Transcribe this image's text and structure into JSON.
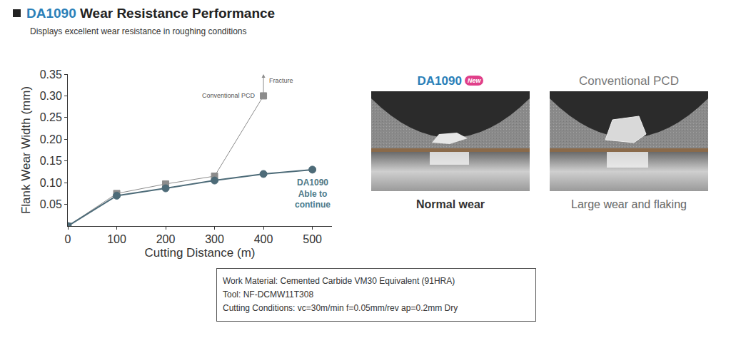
{
  "header": {
    "title_highlight": "DA1090",
    "title_rest": "Wear Resistance Performance",
    "subtitle": "Displays excellent wear resistance in roughing conditions"
  },
  "chart_data": {
    "type": "line",
    "xlabel": "Cutting Distance (m)",
    "ylabel": "Flank Wear Width (mm)",
    "xlim": [
      0,
      540
    ],
    "xticks": [
      0,
      100,
      200,
      300,
      400,
      500
    ],
    "ylim": [
      0,
      0.35
    ],
    "yticks": [
      0.05,
      {
        "value": 0.1,
        "label": "0.10"
      },
      0.15,
      {
        "value": 0.2,
        "label": "0.20"
      },
      0.25,
      {
        "value": 0.3,
        "label": "0.30"
      },
      0.35
    ],
    "grid": false,
    "series": [
      {
        "name": "Conventional PCD",
        "color": "#8c8c8c",
        "marker": "square",
        "line_style": "solid",
        "x": [
          0,
          100,
          200,
          300,
          400
        ],
        "values": [
          0,
          0.075,
          0.097,
          0.115,
          0.3
        ]
      },
      {
        "name": "DA1090",
        "color": "#4d6b78",
        "marker": "circle",
        "line_style": "solid",
        "x": [
          0,
          100,
          200,
          300,
          400,
          500
        ],
        "values": [
          0,
          0.07,
          0.087,
          0.105,
          0.12,
          0.13
        ]
      }
    ],
    "annotations": [
      {
        "text": "Conventional PCD",
        "x": 400,
        "y": 0.3,
        "color": "#555555"
      },
      {
        "lines": [
          "DA1090",
          "Able to",
          "continue"
        ],
        "x": 500,
        "y": 0.075,
        "color": "#4d7a8a"
      }
    ],
    "arrows": [
      {
        "text": "Fracture",
        "x": 400,
        "from": 0.3,
        "to": 0.35,
        "color": "#8c8c8c"
      }
    ]
  },
  "panels": [
    {
      "title": "DA1090",
      "badge": "New",
      "color": "#2a7fb8",
      "caption": "Normal wear",
      "caption_bold": true
    },
    {
      "title": "Conventional PCD",
      "color": "#777777",
      "caption": "Large wear and flaking",
      "caption_bold": false
    }
  ],
  "conditions": [
    "Work Material: Cemented Carbide VM30 Equivalent (91HRA)",
    "Tool: NF-DCMW11T308",
    "Cutting Conditions: vc=30m/min f=0.05mm/rev ap=0.2mm Dry"
  ]
}
